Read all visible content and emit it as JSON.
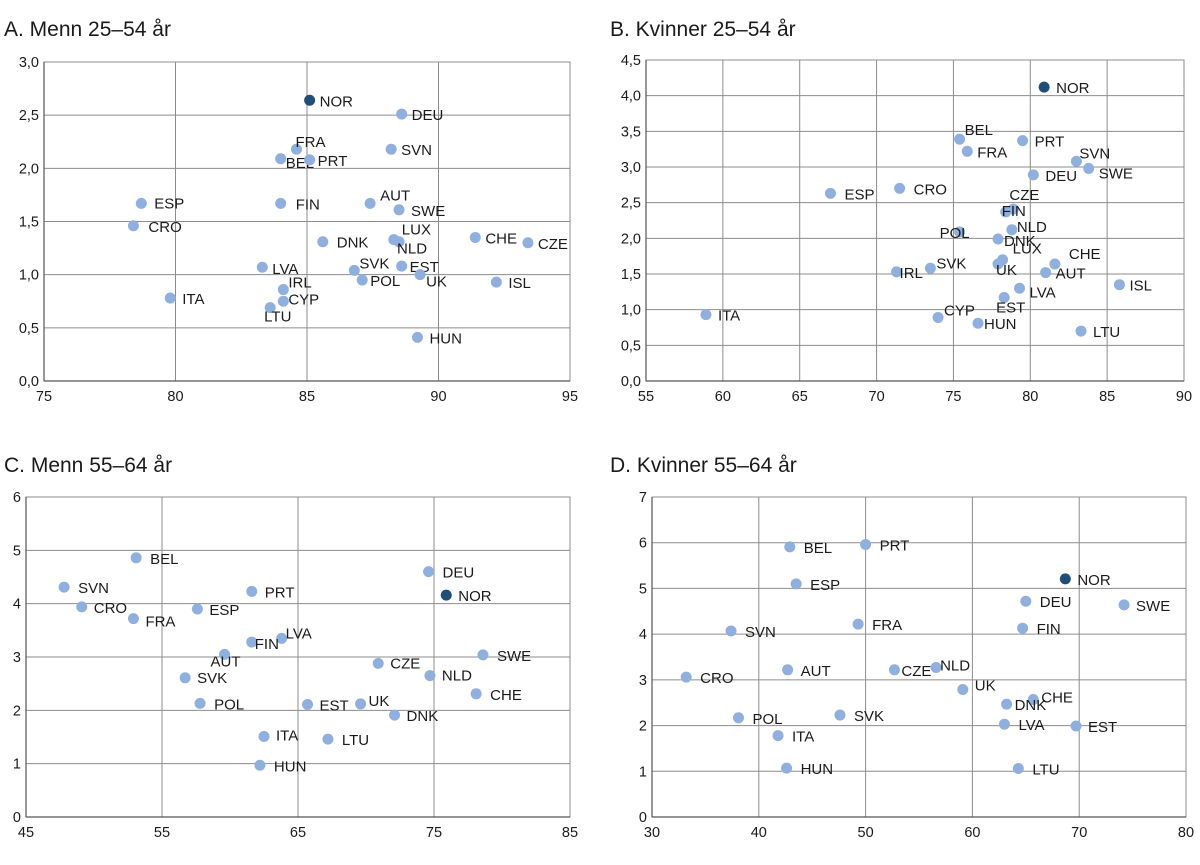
{
  "colors": {
    "point": "#8fb0de",
    "highlight": "#1f4e79",
    "grid": "#8c8c8c",
    "text": "#1a1a1a"
  },
  "chart_data": [
    {
      "type": "scatter",
      "title": "A. Menn 25–54 år",
      "xlim": [
        75,
        95
      ],
      "xticks": [
        75,
        80,
        85,
        90,
        95
      ],
      "ylim": [
        0,
        3
      ],
      "yticks": [
        0,
        0.5,
        1,
        1.5,
        2,
        2.5,
        3
      ],
      "ytick_labels": [
        "0,0",
        "0,5",
        "1,0",
        "1,5",
        "2,0",
        "2,5",
        "3,0"
      ],
      "grid": true,
      "highlight": "NOR",
      "points": [
        {
          "label": "NOR",
          "x": 85.1,
          "y": 2.64
        },
        {
          "label": "DEU",
          "x": 88.6,
          "y": 2.51
        },
        {
          "label": "FRA",
          "x": 84.6,
          "y": 2.18
        },
        {
          "label": "BEL",
          "x": 84.0,
          "y": 2.09
        },
        {
          "label": "PRT",
          "x": 85.1,
          "y": 2.08
        },
        {
          "label": "SVN",
          "x": 88.2,
          "y": 2.18
        },
        {
          "label": "ESP",
          "x": 78.7,
          "y": 1.67
        },
        {
          "label": "CRO",
          "x": 78.4,
          "y": 1.46
        },
        {
          "label": "FIN",
          "x": 84.0,
          "y": 1.67
        },
        {
          "label": "AUT",
          "x": 87.4,
          "y": 1.67
        },
        {
          "label": "SWE",
          "x": 88.5,
          "y": 1.61
        },
        {
          "label": "DNK",
          "x": 85.6,
          "y": 1.31
        },
        {
          "label": "LUX",
          "x": 88.3,
          "y": 1.33
        },
        {
          "label": "NLD",
          "x": 88.5,
          "y": 1.31
        },
        {
          "label": "CHE",
          "x": 91.4,
          "y": 1.35
        },
        {
          "label": "CZE",
          "x": 93.4,
          "y": 1.3
        },
        {
          "label": "LVA",
          "x": 83.3,
          "y": 1.07
        },
        {
          "label": "SVK",
          "x": 86.8,
          "y": 1.04
        },
        {
          "label": "EST",
          "x": 88.6,
          "y": 1.08
        },
        {
          "label": "POL",
          "x": 87.1,
          "y": 0.95
        },
        {
          "label": "UK",
          "x": 89.3,
          "y": 1.0
        },
        {
          "label": "ISL",
          "x": 92.2,
          "y": 0.93
        },
        {
          "label": "IRL",
          "x": 84.1,
          "y": 0.86
        },
        {
          "label": "ITA",
          "x": 79.8,
          "y": 0.78
        },
        {
          "label": "CYP",
          "x": 84.1,
          "y": 0.75
        },
        {
          "label": "LTU",
          "x": 83.6,
          "y": 0.69
        },
        {
          "label": "HUN",
          "x": 89.2,
          "y": 0.41
        }
      ]
    },
    {
      "type": "scatter",
      "title": "B. Kvinner 25–54 år",
      "xlim": [
        55,
        90
      ],
      "xticks": [
        55,
        60,
        65,
        70,
        75,
        80,
        85,
        90
      ],
      "ylim": [
        0,
        4.5
      ],
      "yticks": [
        0,
        0.5,
        1,
        1.5,
        2,
        2.5,
        3,
        3.5,
        4,
        4.5
      ],
      "ytick_labels": [
        "0,0",
        "0,5",
        "1,0",
        "1,5",
        "2,0",
        "2,5",
        "3,0",
        "3,5",
        "4,0",
        "4,5"
      ],
      "grid": true,
      "highlight": "NOR",
      "points": [
        {
          "label": "NOR",
          "x": 80.9,
          "y": 4.12
        },
        {
          "label": "BEL",
          "x": 75.4,
          "y": 3.39
        },
        {
          "label": "FRA",
          "x": 75.9,
          "y": 3.22
        },
        {
          "label": "PRT",
          "x": 79.5,
          "y": 3.37
        },
        {
          "label": "SVN",
          "x": 83.0,
          "y": 3.08
        },
        {
          "label": "SWE",
          "x": 83.8,
          "y": 2.98
        },
        {
          "label": "DEU",
          "x": 80.2,
          "y": 2.89
        },
        {
          "label": "ESP",
          "x": 67.0,
          "y": 2.63
        },
        {
          "label": "CRO",
          "x": 71.5,
          "y": 2.7
        },
        {
          "label": "CZE",
          "x": 78.9,
          "y": 2.41
        },
        {
          "label": "FIN",
          "x": 78.4,
          "y": 2.37
        },
        {
          "label": "NLD",
          "x": 78.8,
          "y": 2.12
        },
        {
          "label": "POL",
          "x": 75.4,
          "y": 2.09
        },
        {
          "label": "DNK",
          "x": 77.9,
          "y": 1.99
        },
        {
          "label": "LUX",
          "x": 78.2,
          "y": 1.7
        },
        {
          "label": "CHE",
          "x": 81.6,
          "y": 1.64
        },
        {
          "label": "UK",
          "x": 77.9,
          "y": 1.64
        },
        {
          "label": "SVK",
          "x": 73.5,
          "y": 1.58
        },
        {
          "label": "IRL",
          "x": 71.3,
          "y": 1.53
        },
        {
          "label": "AUT",
          "x": 81.0,
          "y": 1.52
        },
        {
          "label": "ISL",
          "x": 85.8,
          "y": 1.35
        },
        {
          "label": "LVA",
          "x": 79.3,
          "y": 1.3
        },
        {
          "label": "EST",
          "x": 78.3,
          "y": 1.17
        },
        {
          "label": "ITA",
          "x": 58.9,
          "y": 0.93
        },
        {
          "label": "CYP",
          "x": 74.0,
          "y": 0.89
        },
        {
          "label": "HUN",
          "x": 76.6,
          "y": 0.81
        },
        {
          "label": "LTU",
          "x": 83.3,
          "y": 0.7
        }
      ]
    },
    {
      "type": "scatter",
      "title": "C. Menn 55–64 år",
      "xlim": [
        45,
        85
      ],
      "xticks": [
        45,
        55,
        65,
        75,
        85
      ],
      "ylim": [
        0,
        6
      ],
      "yticks": [
        0,
        1,
        2,
        3,
        4,
        5,
        6
      ],
      "ytick_labels": [
        "0",
        "1",
        "2",
        "3",
        "4",
        "5",
        "6"
      ],
      "grid": true,
      "highlight": "NOR",
      "points": [
        {
          "label": "BEL",
          "x": 53.1,
          "y": 4.86
        },
        {
          "label": "SVN",
          "x": 47.8,
          "y": 4.31
        },
        {
          "label": "CRO",
          "x": 49.1,
          "y": 3.94
        },
        {
          "label": "FRA",
          "x": 52.9,
          "y": 3.72
        },
        {
          "label": "PRT",
          "x": 61.6,
          "y": 4.23
        },
        {
          "label": "ESP",
          "x": 57.6,
          "y": 3.9
        },
        {
          "label": "DEU",
          "x": 74.6,
          "y": 4.6
        },
        {
          "label": "NOR",
          "x": 75.9,
          "y": 4.16
        },
        {
          "label": "LVA",
          "x": 63.8,
          "y": 3.35
        },
        {
          "label": "FIN",
          "x": 61.6,
          "y": 3.28
        },
        {
          "label": "AUT",
          "x": 59.6,
          "y": 3.05
        },
        {
          "label": "SWE",
          "x": 78.6,
          "y": 3.04
        },
        {
          "label": "CZE",
          "x": 70.9,
          "y": 2.88
        },
        {
          "label": "NLD",
          "x": 74.7,
          "y": 2.65
        },
        {
          "label": "SVK",
          "x": 56.7,
          "y": 2.61
        },
        {
          "label": "CHE",
          "x": 78.1,
          "y": 2.31
        },
        {
          "label": "POL",
          "x": 57.8,
          "y": 2.13
        },
        {
          "label": "EST",
          "x": 65.7,
          "y": 2.11
        },
        {
          "label": "UK",
          "x": 69.6,
          "y": 2.12
        },
        {
          "label": "DNK",
          "x": 72.1,
          "y": 1.91
        },
        {
          "label": "ITA",
          "x": 62.5,
          "y": 1.51
        },
        {
          "label": "LTU",
          "x": 67.2,
          "y": 1.46
        },
        {
          "label": "HUN",
          "x": 62.2,
          "y": 0.97
        }
      ]
    },
    {
      "type": "scatter",
      "title": "D. Kvinner 55–64 år",
      "xlim": [
        30,
        80
      ],
      "xticks": [
        30,
        40,
        50,
        60,
        70,
        80
      ],
      "ylim": [
        0,
        7
      ],
      "yticks": [
        0,
        1,
        2,
        3,
        4,
        5,
        6,
        7
      ],
      "ytick_labels": [
        "0",
        "1",
        "2",
        "3",
        "4",
        "5",
        "6",
        "7"
      ],
      "grid": true,
      "highlight": "NOR",
      "points": [
        {
          "label": "BEL",
          "x": 42.9,
          "y": 5.91
        },
        {
          "label": "PRT",
          "x": 50.0,
          "y": 5.96
        },
        {
          "label": "ESP",
          "x": 43.5,
          "y": 5.1
        },
        {
          "label": "NOR",
          "x": 68.7,
          "y": 5.21
        },
        {
          "label": "DEU",
          "x": 65.0,
          "y": 4.72
        },
        {
          "label": "SWE",
          "x": 74.2,
          "y": 4.64
        },
        {
          "label": "FRA",
          "x": 49.3,
          "y": 4.22
        },
        {
          "label": "FIN",
          "x": 64.7,
          "y": 4.13
        },
        {
          "label": "SVN",
          "x": 37.4,
          "y": 4.07
        },
        {
          "label": "NLD",
          "x": 56.6,
          "y": 3.27
        },
        {
          "label": "AUT",
          "x": 42.7,
          "y": 3.22
        },
        {
          "label": "CZE",
          "x": 52.7,
          "y": 3.22
        },
        {
          "label": "CRO",
          "x": 33.2,
          "y": 3.06
        },
        {
          "label": "UK",
          "x": 59.1,
          "y": 2.79
        },
        {
          "label": "CHE",
          "x": 65.7,
          "y": 2.57
        },
        {
          "label": "DNK",
          "x": 63.2,
          "y": 2.47
        },
        {
          "label": "SVK",
          "x": 47.6,
          "y": 2.23
        },
        {
          "label": "POL",
          "x": 38.1,
          "y": 2.17
        },
        {
          "label": "LVA",
          "x": 63.0,
          "y": 2.03
        },
        {
          "label": "EST",
          "x": 69.7,
          "y": 1.99
        },
        {
          "label": "ITA",
          "x": 41.8,
          "y": 1.78
        },
        {
          "label": "HUN",
          "x": 42.6,
          "y": 1.07
        },
        {
          "label": "LTU",
          "x": 64.3,
          "y": 1.06
        }
      ]
    }
  ]
}
